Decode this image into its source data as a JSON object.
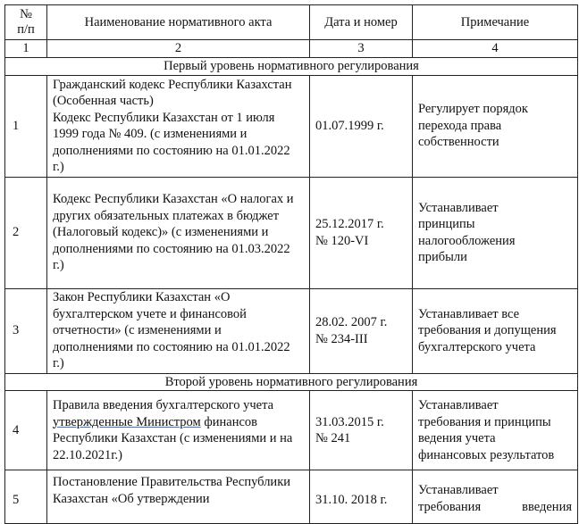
{
  "header": {
    "col1": "№\nп/п",
    "col2": "Наименование нормативного акта",
    "col3": "Дата и номер",
    "col4": "Примечание"
  },
  "numbering": [
    "1",
    "2",
    "3",
    "4"
  ],
  "sections": [
    {
      "title": "Первый уровень нормативного регулирования",
      "rows": [
        {
          "num": "1",
          "name": "Гражданский кодекс Республики Казахстан (Особенная часть)\nКодекс Республики Казахстан от 1 июля 1999 года № 409. (с изменениями и дополнениями по состоянию на 01.01.2022 г.)",
          "date": "01.07.1999 г.",
          "note": "Регулирует порядок перехода права собственности"
        },
        {
          "num": "2",
          "name": "Кодекс Республики Казахстан «О налогах и других обязательных платежах в бюджет (Налоговый кодекс)» (с изменениями и дополнениями по состоянию на 01.03.2022 г.)",
          "date": "25.12.2017 г.\n№ 120-VI",
          "note": "Устанавливает\nпринципы\nналогообложения\nприбыли"
        },
        {
          "num": "3",
          "name": "Закон Республики Казахстан «О бухгалтерском учете и финансовой отчетности» (с изменениями и дополнениями по состоянию на 01.01.2022 г.)",
          "date": "28.02. 2007 г.\n№ 234-III",
          "note": "Устанавливает все требования и допущения бухгалтерского учета"
        }
      ]
    },
    {
      "title": "Второй уровень нормативного регулирования",
      "rows": [
        {
          "num": "4",
          "name_line1": "Правила введения бухгалтерского учета",
          "name_underlined": "утвержденные  Министром",
          "name_rest": "  финансов Республики Казахстан (с изменениями и на 22.10.2021г.)",
          "date": "31.03.2015 г.\n№ 241",
          "note": "Устанавливает\nтребования и принципы\nведения учета\nфинансовых результатов"
        },
        {
          "num": "5",
          "name": "Постановление Правительства Республики Казахстан «Об утверждении",
          "date": "31.10. 2018 г.",
          "note_line1": "Устанавливает",
          "note_line2": "требования      введения"
        }
      ]
    }
  ]
}
